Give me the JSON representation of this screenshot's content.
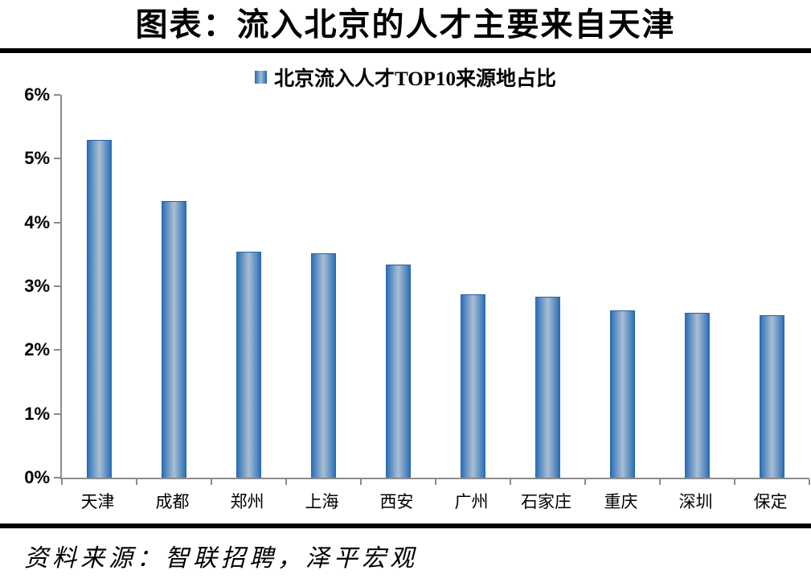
{
  "page": {
    "title": "图表：流入北京的人才主要来自天津",
    "source": "资料来源：智联招聘，泽平宏观"
  },
  "chart_data": {
    "type": "bar",
    "title": "北京流入人才TOP10来源地占比",
    "legend": [
      "北京流入人才TOP10来源地占比"
    ],
    "legend_position": "top-center",
    "categories": [
      "天津",
      "成都",
      "郑州",
      "上海",
      "西安",
      "广州",
      "石家庄",
      "重庆",
      "深圳",
      "保定"
    ],
    "values": [
      5.28,
      4.33,
      3.53,
      3.5,
      3.33,
      2.86,
      2.83,
      2.61,
      2.57,
      2.53
    ],
    "unit": "%",
    "xlabel": "",
    "ylabel": "",
    "ylim": [
      0,
      6
    ],
    "y_ticks": [
      "0%",
      "1%",
      "2%",
      "3%",
      "4%",
      "5%",
      "6%"
    ],
    "grid": false,
    "colors": {
      "bar_edge": "#2267AF",
      "bar_center": "#A6BBD1",
      "axis": "#8C8C8C",
      "text": "#000000",
      "divider": "#000000"
    }
  }
}
